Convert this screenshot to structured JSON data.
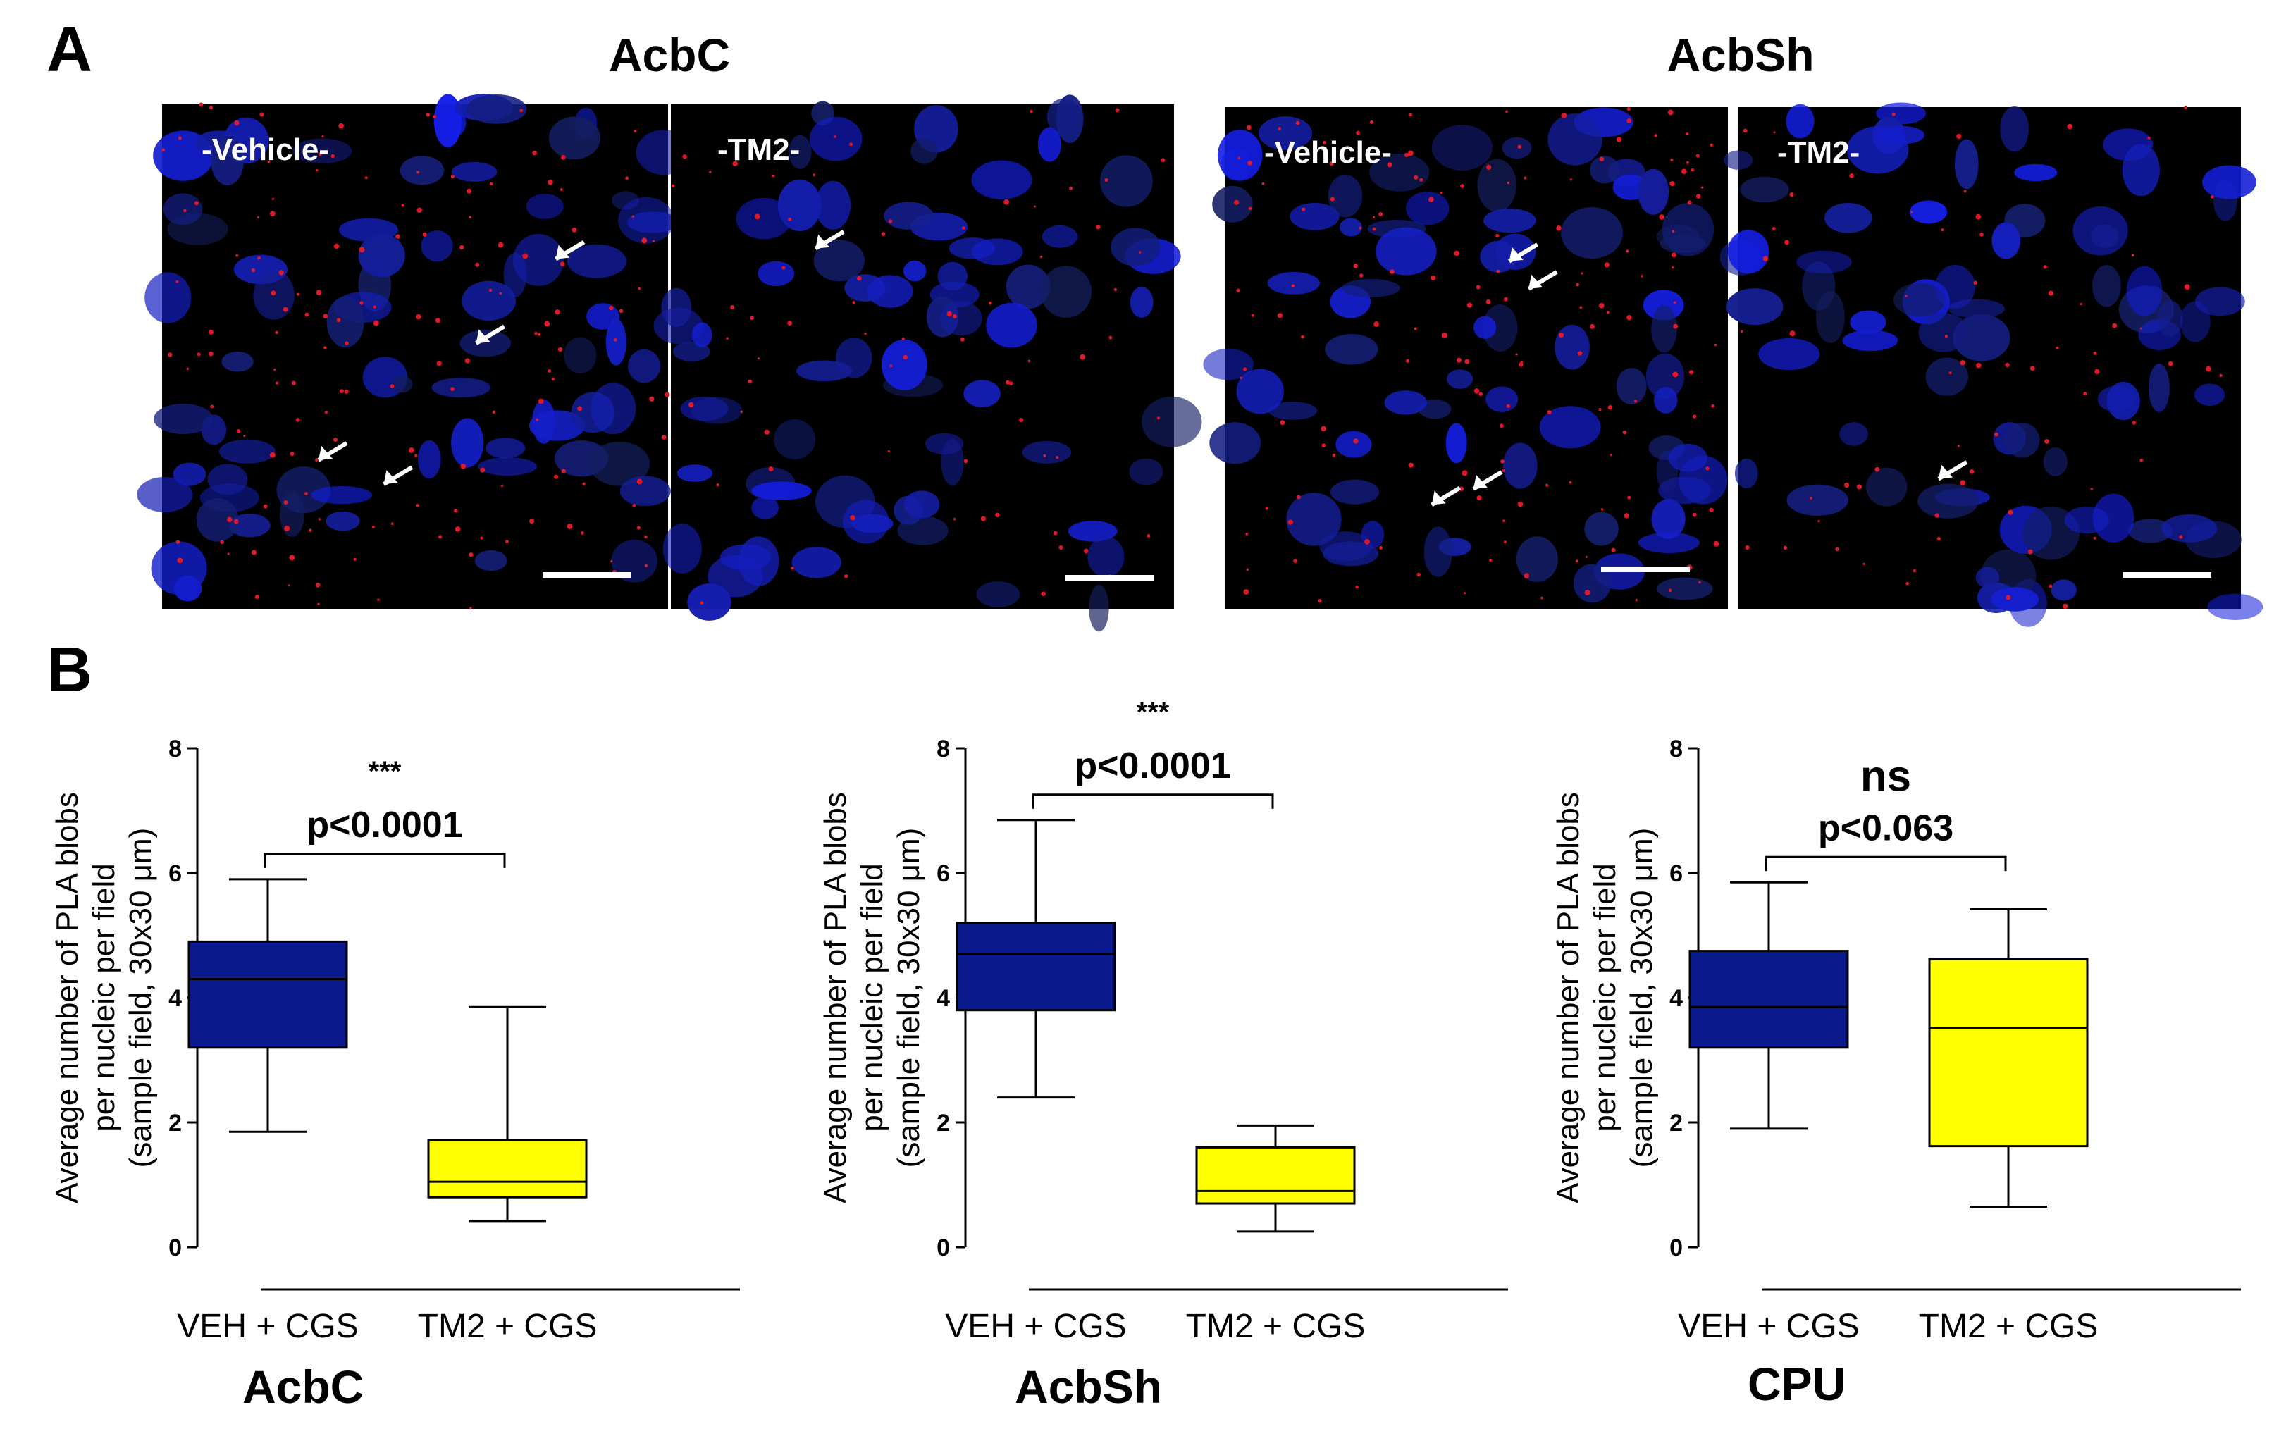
{
  "panel_a": {
    "letter": "A",
    "regions": [
      {
        "title": "AcbC",
        "images": [
          {
            "label": "-Vehicle-"
          },
          {
            "label": "-TM2-"
          }
        ]
      },
      {
        "title": "AcbSh",
        "images": [
          {
            "label": "-Vehicle-"
          },
          {
            "label": "-TM2-"
          }
        ]
      }
    ]
  },
  "panel_b": {
    "letter": "B"
  },
  "chart_data": [
    {
      "type": "box",
      "caption": "AcbC",
      "ylabel": [
        "Average number of PLA blobs",
        "per nucleic per field",
        "(sample field, 30x30 μm)"
      ],
      "ylim": [
        0,
        8
      ],
      "yticks": [
        "0",
        "2",
        "4",
        "6",
        "8"
      ],
      "categories": [
        "VEH + CGS",
        "TM2 + CGS"
      ],
      "colors": [
        "#0a1a8c",
        "#ffff00"
      ],
      "boxes": [
        {
          "category": "VEH + CGS",
          "min": 1.85,
          "q1": 3.2,
          "median": 4.3,
          "q3": 4.9,
          "max": 5.9
        },
        {
          "category": "TM2 + CGS",
          "min": 0.42,
          "q1": 0.8,
          "median": 1.05,
          "q3": 1.72,
          "max": 3.85
        }
      ],
      "significance": "***",
      "pvalue": "p<0.0001"
    },
    {
      "type": "box",
      "caption": "AcbSh",
      "ylabel": [
        "Average number of PLA blobs",
        "per nucleic per field",
        "(sample field, 30x30 μm)"
      ],
      "ylim": [
        0,
        8
      ],
      "yticks": [
        "0",
        "2",
        "4",
        "6",
        "8"
      ],
      "categories": [
        "VEH + CGS",
        "TM2 + CGS"
      ],
      "colors": [
        "#0a1a8c",
        "#ffff00"
      ],
      "boxes": [
        {
          "category": "VEH + CGS",
          "min": 2.4,
          "q1": 3.8,
          "median": 4.7,
          "q3": 5.2,
          "max": 6.85
        },
        {
          "category": "TM2 + CGS",
          "min": 0.25,
          "q1": 0.7,
          "median": 0.9,
          "q3": 1.6,
          "max": 1.95
        }
      ],
      "significance": "***",
      "pvalue": "p<0.0001"
    },
    {
      "type": "box",
      "caption": "CPU",
      "ylabel": [
        "Average number of PLA blobs",
        "per nucleic per field",
        "(sample field, 30x30 μm)"
      ],
      "ylim": [
        0,
        8
      ],
      "yticks": [
        "0",
        "2",
        "4",
        "6",
        "8"
      ],
      "categories": [
        "VEH + CGS",
        "TM2 + CGS"
      ],
      "colors": [
        "#0a1a8c",
        "#ffff00"
      ],
      "boxes": [
        {
          "category": "VEH + CGS",
          "min": 1.9,
          "q1": 3.2,
          "median": 3.85,
          "q3": 4.75,
          "max": 5.85
        },
        {
          "category": "TM2 + CGS",
          "min": 0.65,
          "q1": 1.62,
          "median": 3.52,
          "q3": 4.62,
          "max": 5.42
        }
      ],
      "significance": "ns",
      "pvalue": "p<0.063"
    }
  ]
}
